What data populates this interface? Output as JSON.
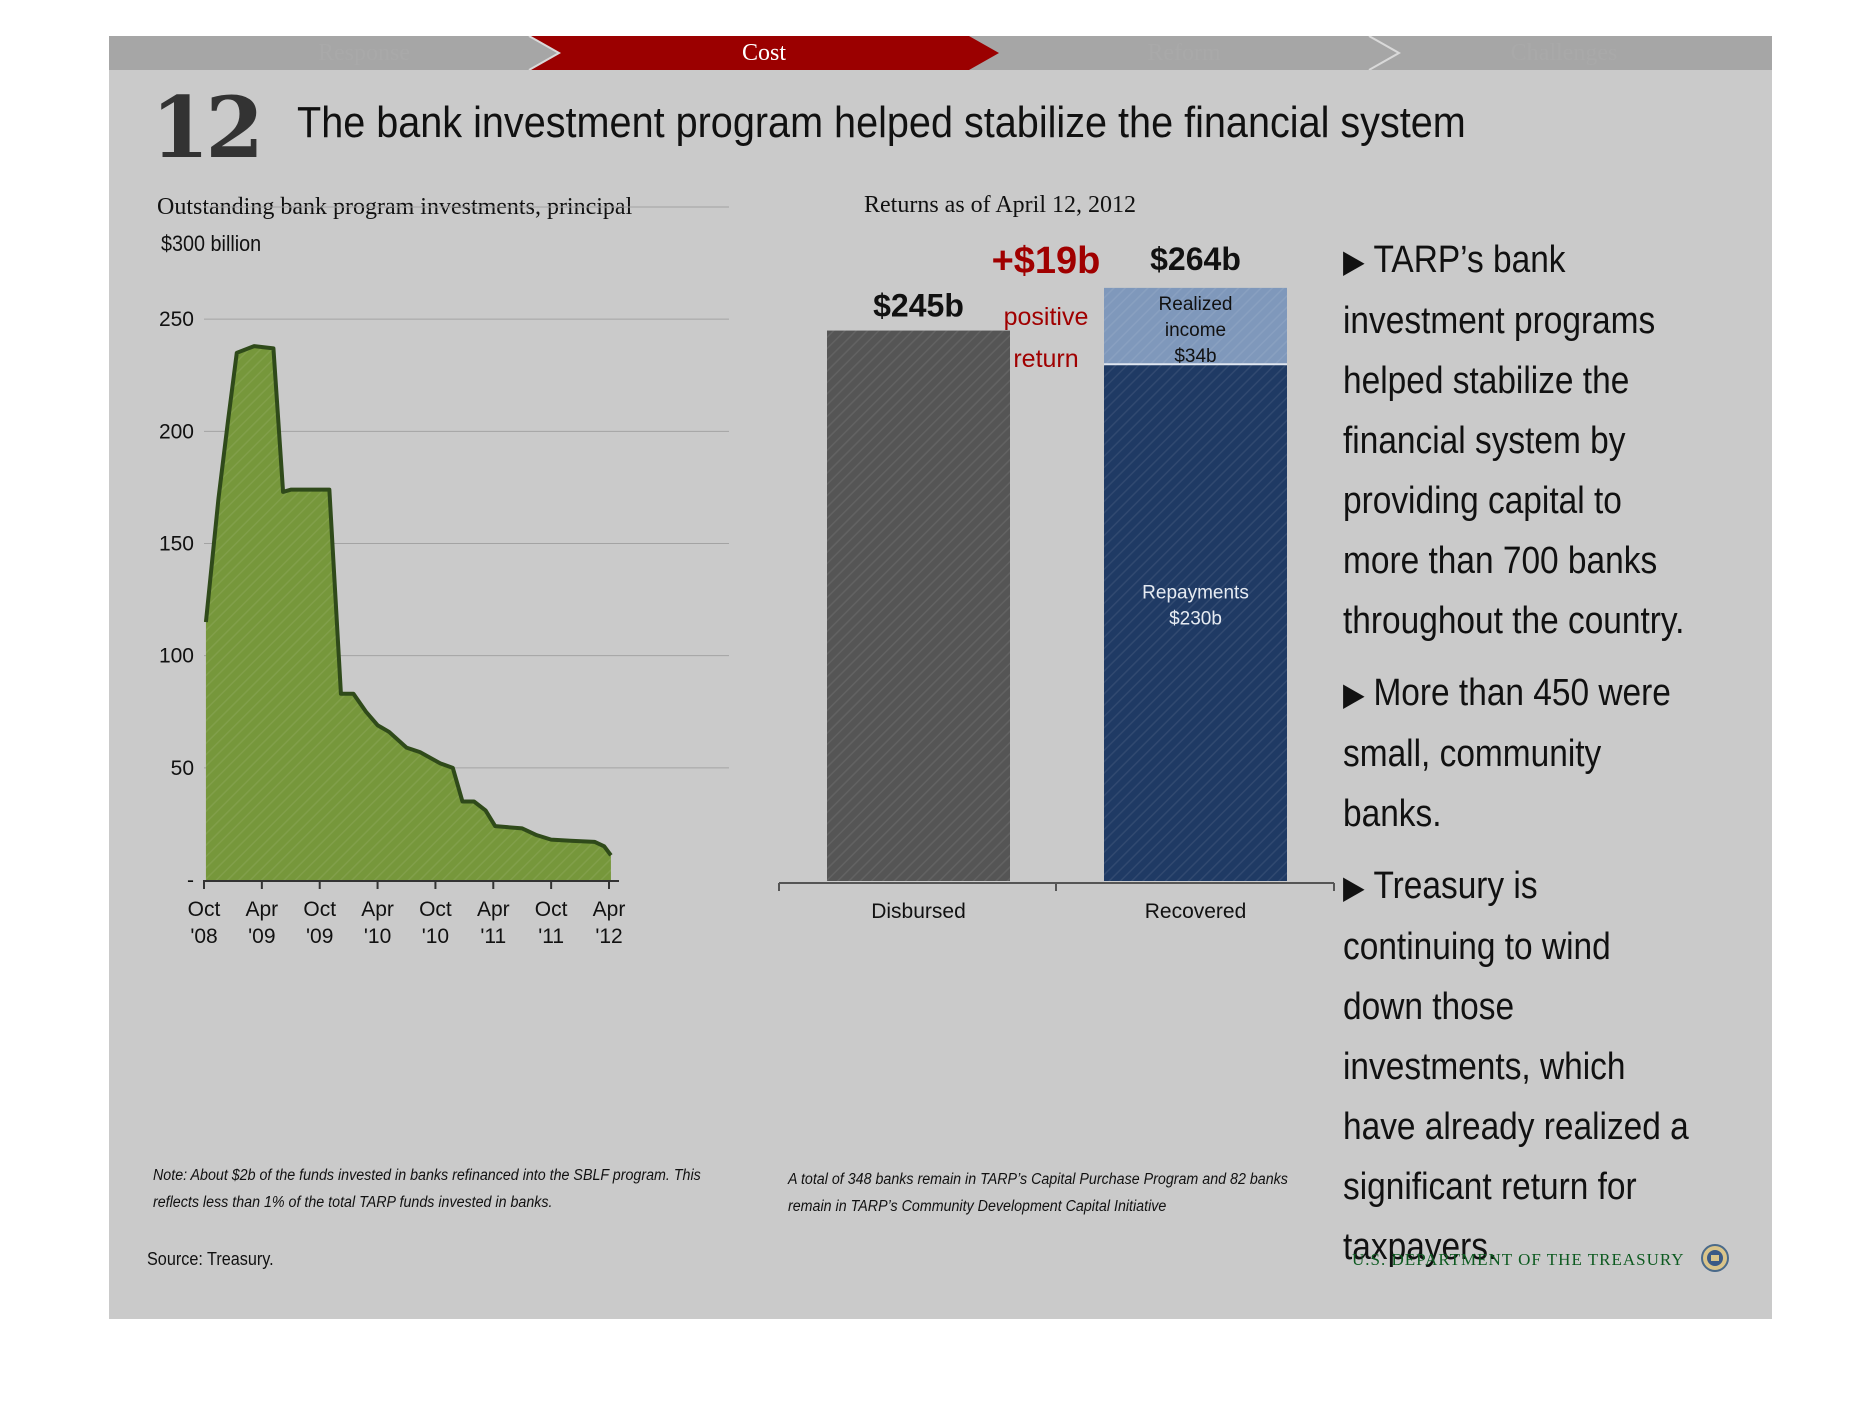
{
  "nav": {
    "tabs": [
      {
        "label": "Response",
        "active": false
      },
      {
        "label": "Cost",
        "active": true
      },
      {
        "label": "Reform",
        "active": false
      },
      {
        "label": "Challenges",
        "active": false
      }
    ]
  },
  "slide_number": "12",
  "title": "The bank investment program helped stabilize the financial system",
  "bullets": [
    "TARP’s bank investment programs helped stabilize the financial system by providing capital to more than 700 banks throughout the country.",
    "More than 450 were small, community banks.",
    "Treasury is continuing to wind down those investments, which have already realized a significant return for taxpayers."
  ],
  "note_left": "Note: About $2b of the funds invested in banks refinanced into the SBLF program. This reflects less than 1% of the total TARP funds invested in banks.",
  "note_right": "A total of 348 banks remain in TARP’s Capital Purchase Program and 82 banks remain in TARP’s Community Development Capital Initiative",
  "source": "Source: Treasury.",
  "footer": "U.S. DEPARTMENT OF THE TREASURY",
  "colors": {
    "nav_active": "#9b0000",
    "nav_inactive": "#a6a6a6",
    "area_fill": "#76973b",
    "area_stroke": "#2f4a1a",
    "disbursed": "#555555",
    "repayments": "#1f3a64",
    "realized_income": "#7f98bb",
    "positive_return": "#a00000",
    "footer_text": "#0d5a20"
  },
  "chart_data": [
    {
      "type": "area",
      "title": "Outstanding bank program investments, principal",
      "unit_label": "$300 billion",
      "ylim": [
        0,
        300
      ],
      "yticks": [
        {
          "value": 300,
          "label": ""
        },
        {
          "value": 250,
          "label": "250"
        },
        {
          "value": 200,
          "label": "200"
        },
        {
          "value": 150,
          "label": "150"
        },
        {
          "value": 100,
          "label": "100"
        },
        {
          "value": 50,
          "label": "50"
        },
        {
          "value": 0,
          "label": "-"
        }
      ],
      "xticks": [
        {
          "line1": "Oct",
          "line2": "'08",
          "t": 0
        },
        {
          "line1": "Apr",
          "line2": "'09",
          "t": 6
        },
        {
          "line1": "Oct",
          "line2": "'09",
          "t": 12
        },
        {
          "line1": "Apr",
          "line2": "'10",
          "t": 18
        },
        {
          "line1": "Oct",
          "line2": "'10",
          "t": 24
        },
        {
          "line1": "Apr",
          "line2": "'11",
          "t": 30
        },
        {
          "line1": "Oct",
          "line2": "'11",
          "t": 36
        },
        {
          "line1": "Apr",
          "line2": "'12",
          "t": 42
        }
      ],
      "x_unit": "months since Oct '08",
      "grid": true,
      "series": [
        {
          "name": "Outstanding principal",
          "points": [
            [
              0.2,
              115
            ],
            [
              1.5,
              170
            ],
            [
              2.5,
              205
            ],
            [
              3.4,
              235
            ],
            [
              5.2,
              238
            ],
            [
              7.2,
              237
            ],
            [
              8.2,
              173
            ],
            [
              9,
              174
            ],
            [
              13,
              174
            ],
            [
              14.2,
              83
            ],
            [
              15.5,
              83
            ],
            [
              16.8,
              75
            ],
            [
              18,
              69
            ],
            [
              19.2,
              66
            ],
            [
              21,
              59
            ],
            [
              22.4,
              57
            ],
            [
              24.5,
              52
            ],
            [
              25.8,
              50
            ],
            [
              26.8,
              35
            ],
            [
              28,
              35
            ],
            [
              29.2,
              31
            ],
            [
              30.2,
              24
            ],
            [
              33,
              23
            ],
            [
              34.5,
              20
            ],
            [
              36,
              18
            ],
            [
              38,
              17.5
            ],
            [
              40.5,
              17
            ],
            [
              41.5,
              15
            ],
            [
              42.2,
              11
            ]
          ]
        }
      ]
    },
    {
      "type": "bar",
      "title": "Returns as of April 12, 2012",
      "categories": [
        "Disbursed",
        "Recovered"
      ],
      "ylim": [
        0,
        300
      ],
      "series": [
        {
          "name": "Disbursed",
          "values": [
            245,
            0
          ]
        },
        {
          "name": "Repayments",
          "values": [
            0,
            230
          ]
        },
        {
          "name": "Realized income",
          "values": [
            0,
            34
          ]
        }
      ],
      "bar_labels": {
        "disbursed_total": "$245b",
        "recovered_total": "$264b",
        "repayments_line1": "Repayments",
        "repayments_line2": "$230b",
        "income_line1": "Realized",
        "income_line2": "income",
        "income_line3": "$34b"
      },
      "annotation": {
        "value": "+$19b",
        "line1": "positive",
        "line2": "return"
      }
    }
  ]
}
